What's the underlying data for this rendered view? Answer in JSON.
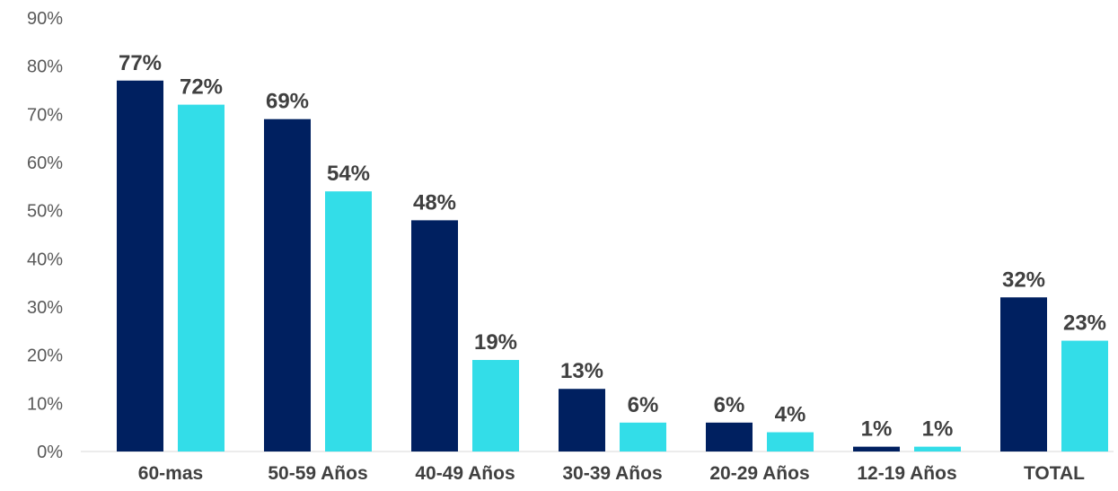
{
  "chart_data": {
    "type": "bar",
    "categories": [
      "60-mas",
      "50-59 Años",
      "40-49 Años",
      "30-39 Años",
      "20-29 Años",
      "12-19 Años",
      "TOTAL"
    ],
    "series": [
      {
        "values": [
          77,
          69,
          48,
          13,
          6,
          1,
          32
        ],
        "labels": [
          "77%",
          "69%",
          "48%",
          "13%",
          "6%",
          "1%",
          "32%"
        ],
        "color": "#002060"
      },
      {
        "values": [
          72,
          54,
          19,
          6,
          4,
          1,
          23
        ],
        "labels": [
          "72%",
          "54%",
          "19%",
          "6%",
          "4%",
          "1%",
          "23%"
        ],
        "color": "#33DDE8"
      }
    ],
    "ylim": [
      0,
      90
    ],
    "yticks": [
      0,
      10,
      20,
      30,
      40,
      50,
      60,
      70,
      80,
      90
    ],
    "ytick_labels": [
      "0%",
      "10%",
      "20%",
      "30%",
      "40%",
      "50%",
      "60%",
      "70%",
      "80%",
      "90%"
    ],
    "title": "",
    "xlabel": "",
    "ylabel": "",
    "grid": false,
    "legend": "none"
  }
}
